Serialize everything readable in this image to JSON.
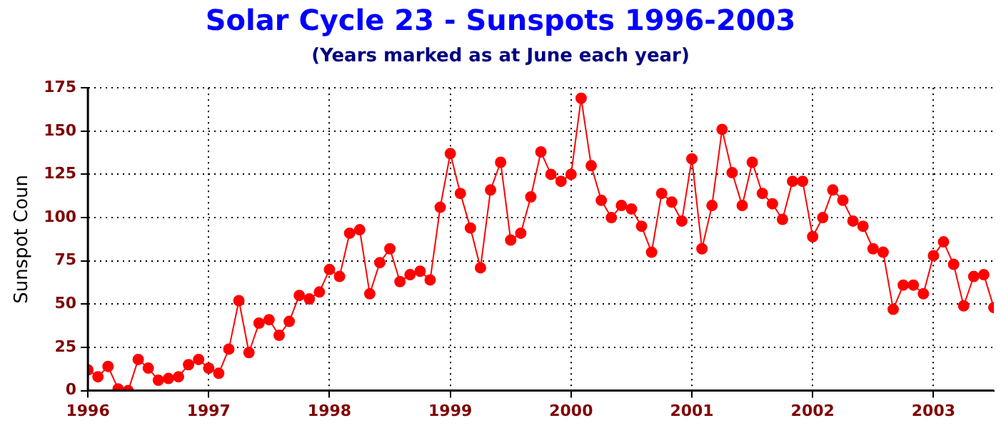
{
  "chart_data": {
    "type": "line",
    "title": "Solar Cycle 23 - Sunspots 1996-2003",
    "subtitle": "(Years marked as at June each year)",
    "ylabel": "Sunspot Coun",
    "x": [
      "1996-01",
      "1996-02",
      "1996-03",
      "1996-04",
      "1996-05",
      "1996-06",
      "1996-07",
      "1996-08",
      "1996-09",
      "1996-10",
      "1996-11",
      "1996-12",
      "1997-01",
      "1997-02",
      "1997-03",
      "1997-04",
      "1997-05",
      "1997-06",
      "1997-07",
      "1997-08",
      "1997-09",
      "1997-10",
      "1997-11",
      "1997-12",
      "1998-01",
      "1998-02",
      "1998-03",
      "1998-04",
      "1998-05",
      "1998-06",
      "1998-07",
      "1998-08",
      "1998-09",
      "1998-10",
      "1998-11",
      "1998-12",
      "1999-01",
      "1999-02",
      "1999-03",
      "1999-04",
      "1999-05",
      "1999-06",
      "1999-07",
      "1999-08",
      "1999-09",
      "1999-10",
      "1999-11",
      "1999-12",
      "2000-01",
      "2000-02",
      "2000-03",
      "2000-04",
      "2000-05",
      "2000-06",
      "2000-07",
      "2000-08",
      "2000-09",
      "2000-10",
      "2000-11",
      "2000-12",
      "2001-01",
      "2001-02",
      "2001-03",
      "2001-04",
      "2001-05",
      "2001-06",
      "2001-07",
      "2001-08",
      "2001-09",
      "2001-10",
      "2001-11",
      "2001-12",
      "2002-01",
      "2002-02",
      "2002-03",
      "2002-04",
      "2002-05",
      "2002-06",
      "2002-07",
      "2002-08",
      "2002-09",
      "2002-10",
      "2002-11",
      "2002-12",
      "2003-01",
      "2003-02",
      "2003-03",
      "2003-04",
      "2003-05",
      "2003-06",
      "2003-07"
    ],
    "series": [
      {
        "color": "#ff0000",
        "values": [
          12,
          8,
          14,
          1,
          0,
          18,
          13,
          6,
          7,
          8,
          15,
          18,
          13,
          10,
          24,
          52,
          22,
          39,
          41,
          32,
          40,
          55,
          53,
          57,
          70,
          66,
          91,
          93,
          56,
          74,
          82,
          63,
          67,
          69,
          64,
          106,
          137,
          114,
          94,
          71,
          116,
          132,
          87,
          91,
          112,
          138,
          125,
          121,
          125,
          169,
          130,
          110,
          100,
          107,
          105,
          95,
          80,
          114,
          109,
          98,
          134,
          82,
          107,
          151,
          126,
          107,
          132,
          114,
          108,
          99,
          121,
          121,
          89,
          100,
          116,
          110,
          98,
          95,
          82,
          80,
          47,
          61,
          61,
          56,
          78,
          86,
          73,
          49,
          66,
          67,
          48
        ]
      }
    ],
    "xlim": [
      "1996-01",
      "2003-07"
    ],
    "xticks": [
      "1996",
      "1997",
      "1998",
      "1999",
      "2000",
      "2001",
      "2002",
      "2003"
    ],
    "ylim": [
      0,
      175
    ],
    "yticks": [
      0,
      25,
      50,
      75,
      100,
      125,
      150,
      175
    ],
    "grid": true,
    "legend": false,
    "marker": "circle",
    "line_style": "solid"
  }
}
